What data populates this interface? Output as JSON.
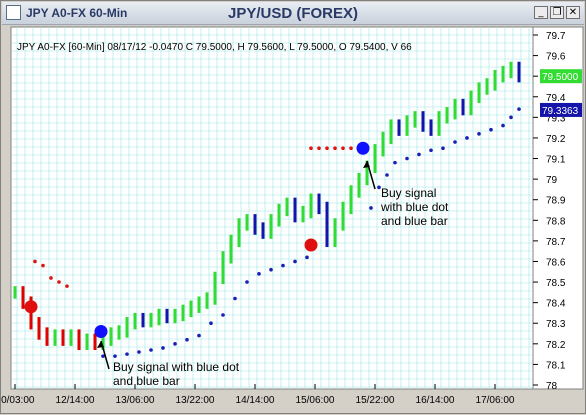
{
  "window": {
    "title_left": "JPY A0-FX 60-Min",
    "title_center": "JPY/USD (FOREX)",
    "minimize_glyph": "_",
    "restore_glyph": "❐",
    "close_glyph": "✕"
  },
  "colors": {
    "up_bar": "#32dc32",
    "down_bar": "#1414aa",
    "red_bar": "#e00000",
    "blue_dot": "#1e1eb4",
    "red_dot": "#e01414",
    "signal_blue": "#1010ff",
    "signal_red": "#e01010",
    "grid": "#9fe6e6",
    "last_price_bg": "#32dc32",
    "indicator_bg": "#1414aa"
  },
  "chart_data": {
    "type": "line",
    "info_line": "JPY A0-FX [60-Min] 08/17/12  -0.0470 C 79.5000, H 79.5600, L 79.5000, O 79.5400, V 66",
    "ylim": [
      78.0,
      79.7
    ],
    "y_ticks": [
      "79.7",
      "79.6",
      "79.5",
      "79.4",
      "79.3",
      "79.2",
      "79.1",
      "79",
      "78.9",
      "78.8",
      "78.7",
      "78.6",
      "78.5",
      "78.4",
      "78.3",
      "78.2",
      "78.1",
      "78"
    ],
    "y_tick_values": [
      79.7,
      79.6,
      79.5,
      79.4,
      79.3,
      79.2,
      79.1,
      79.0,
      78.9,
      78.8,
      78.7,
      78.6,
      78.5,
      78.4,
      78.3,
      78.2,
      78.1,
      78.0
    ],
    "x_ticks": [
      "10/03:00",
      "12/14:00",
      "13/06:00",
      "13/22:00",
      "14/14:00",
      "15/06:00",
      "15/22:00",
      "16/14:00",
      "17/06:00"
    ],
    "last_price_label": "79.5000",
    "last_price_value": 79.5,
    "indicator_label": "79.3363",
    "indicator_value": 79.336,
    "price_series": [
      {
        "name": "",
        "x": [
          0,
          8,
          16,
          24,
          32,
          40,
          48,
          56,
          64,
          72,
          80,
          88,
          96,
          104,
          112,
          120,
          128,
          136,
          144,
          152,
          160,
          168,
          176,
          184,
          192,
          200,
          208,
          216,
          224,
          232,
          240,
          248,
          256,
          264,
          272,
          280,
          288,
          296,
          304,
          312,
          320,
          328,
          336,
          344,
          352,
          360,
          368,
          376,
          384,
          392,
          400,
          408,
          416,
          424,
          432,
          440,
          448,
          456,
          464,
          472,
          480,
          488,
          496,
          504
        ],
        "y": [
          78.45,
          78.4,
          78.3,
          78.25,
          78.22,
          78.24,
          78.22,
          78.24,
          78.2,
          78.22,
          78.2,
          78.22,
          78.25,
          78.26,
          78.3,
          78.32,
          78.31,
          78.32,
          78.34,
          78.33,
          78.34,
          78.36,
          78.38,
          78.4,
          78.42,
          78.52,
          78.62,
          78.7,
          78.78,
          78.8,
          78.76,
          78.74,
          78.8,
          78.85,
          78.88,
          78.82,
          78.84,
          78.9,
          78.86,
          78.7,
          78.78,
          78.86,
          78.94,
          79.0,
          79.06,
          79.14,
          79.2,
          79.26,
          79.24,
          79.28,
          79.3,
          79.26,
          79.24,
          79.3,
          79.32,
          79.36,
          79.34,
          79.4,
          79.44,
          79.46,
          79.5,
          79.52,
          79.54,
          79.5
        ]
      }
    ],
    "stop_dots": [
      {
        "x": [
          20,
          28,
          36,
          44,
          52
        ],
        "y": [
          78.6,
          78.58,
          78.52,
          78.5,
          78.48
        ],
        "color": "red"
      },
      {
        "x": [
          88,
          100,
          112,
          124,
          136,
          148,
          160,
          172,
          184,
          196,
          208,
          220,
          232,
          244,
          256,
          268,
          280,
          292
        ],
        "y": [
          78.14,
          78.14,
          78.15,
          78.16,
          78.17,
          78.18,
          78.2,
          78.22,
          78.24,
          78.3,
          78.34,
          78.42,
          78.5,
          78.54,
          78.56,
          78.58,
          78.6,
          78.62
        ],
        "color": "blue"
      },
      {
        "x": [
          296,
          304,
          312,
          320,
          328,
          336,
          344
        ],
        "y": [
          79.15,
          79.15,
          79.15,
          79.15,
          79.15,
          79.15,
          79.15
        ],
        "color": "red"
      },
      {
        "x": [
          356,
          364,
          372,
          380,
          392,
          404,
          416,
          428,
          440,
          452,
          464,
          476,
          488,
          496,
          504
        ],
        "y": [
          78.86,
          78.96,
          79.02,
          79.08,
          79.1,
          79.12,
          79.14,
          79.15,
          79.18,
          79.2,
          79.22,
          79.24,
          79.26,
          79.3,
          79.34
        ],
        "color": "blue"
      }
    ],
    "signals": [
      {
        "x": 16,
        "y": 78.38,
        "color": "red"
      },
      {
        "x": 86,
        "y": 78.26,
        "color": "blue"
      },
      {
        "x": 296,
        "y": 78.68,
        "color": "red"
      },
      {
        "x": 348,
        "y": 79.15,
        "color": "blue"
      }
    ]
  },
  "annotations": {
    "signal1_line1": "Buy signal",
    "signal1_line2": "with blue dot",
    "signal1_line3": "and blue bar",
    "signal2_line1": "Buy signal with blue dot",
    "signal2_line2": "and blue bar"
  }
}
